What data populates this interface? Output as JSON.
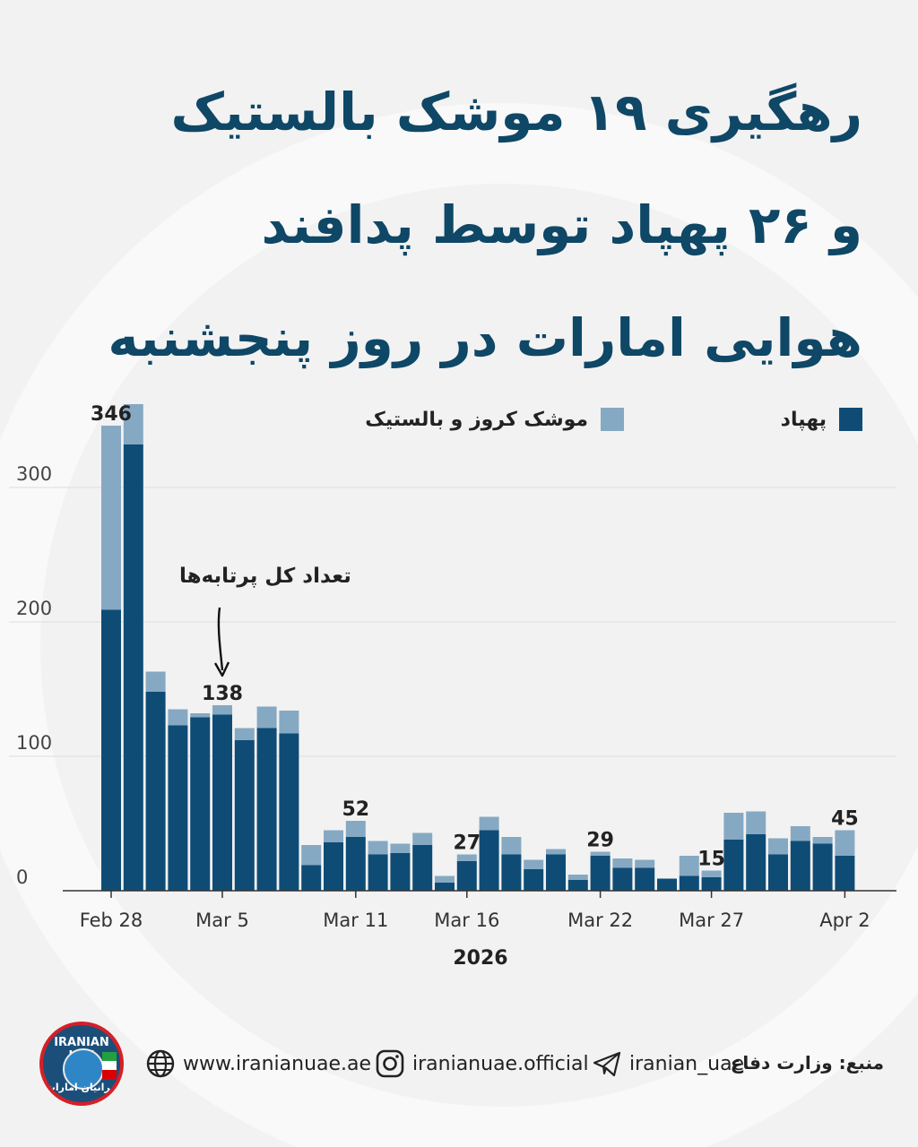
{
  "title": {
    "line1": "رهگیری ۱۹ موشک بالستیک",
    "line2": "و ۲۶ پهپاد توسط پدافند",
    "line3": "هوایی امارات در روز پنجشنبه"
  },
  "legend": {
    "drone_label": "پهپاد",
    "missile_label": "موشک کروز و بالستیک"
  },
  "annotation": "تعداد کل پرتابه‌ها",
  "footer": {
    "logo_text_top": "IRANIAN UAE",
    "logo_text_bottom": "ایرانیان امارات",
    "website": "www.iranianuae.ae",
    "instagram": "iranianuae.official",
    "telegram": "iranian_uae",
    "source": "منبع: وزارت دفاع"
  },
  "colors": {
    "drone": "#0f4c75",
    "missile": "#86a9c3",
    "title": "#0f4766",
    "background": "#f2f2f2"
  },
  "icons": {
    "website": "globe-icon",
    "instagram": "instagram-icon",
    "telegram": "telegram-icon",
    "annotation": "arrow-down-icon"
  },
  "chart_data": {
    "type": "bar",
    "stacked": true,
    "xlabel": "2026",
    "ylabel": "",
    "ylim": [
      0,
      360
    ],
    "yticks": [
      0,
      100,
      200,
      300
    ],
    "grid": true,
    "legend_position": "top",
    "categories": [
      "Feb 28",
      "Mar 1",
      "Mar 2",
      "Mar 3",
      "Mar 4",
      "Mar 5",
      "Mar 6",
      "Mar 7",
      "Mar 8",
      "Mar 9",
      "Mar 10",
      "Mar 11",
      "Mar 12",
      "Mar 13",
      "Mar 14",
      "Mar 15",
      "Mar 16",
      "Mar 17",
      "Mar 18",
      "Mar 19",
      "Mar 20",
      "Mar 21",
      "Mar 22",
      "Mar 23",
      "Mar 24",
      "Mar 25",
      "Mar 26",
      "Mar 27",
      "Mar 28",
      "Mar 29",
      "Mar 30",
      "Mar 31",
      "Apr 1",
      "Apr 2"
    ],
    "xtick_labels": [
      "Feb 28",
      "Mar 5",
      "Mar 11",
      "Mar 16",
      "Mar 22",
      "Mar 27",
      "Apr 2"
    ],
    "series": [
      {
        "name": "پهپاد",
        "values": [
          209,
          332,
          148,
          123,
          129,
          131,
          112,
          121,
          117,
          19,
          36,
          40,
          27,
          28,
          34,
          6,
          22,
          45,
          27,
          16,
          27,
          8,
          26,
          17,
          17,
          9,
          11,
          10,
          38,
          42,
          27,
          37,
          35,
          26
        ]
      },
      {
        "name": "موشک کروز و بالستیک",
        "values": [
          137,
          30,
          15,
          12,
          3,
          7,
          9,
          16,
          17,
          15,
          9,
          12,
          10,
          7,
          9,
          5,
          5,
          10,
          13,
          7,
          4,
          4,
          3,
          7,
          6,
          0,
          15,
          5,
          20,
          17,
          12,
          11,
          5,
          19
        ]
      }
    ],
    "totals_labeled": [
      {
        "category": "Feb 28",
        "value": "346"
      },
      {
        "category": "Mar 5",
        "value": "138"
      },
      {
        "category": "Mar 11",
        "value": "52"
      },
      {
        "category": "Mar 16",
        "value": "27"
      },
      {
        "category": "Mar 22",
        "value": "29"
      },
      {
        "category": "Mar 27",
        "value": "15"
      },
      {
        "category": "Apr 2",
        "value": "45"
      }
    ]
  }
}
